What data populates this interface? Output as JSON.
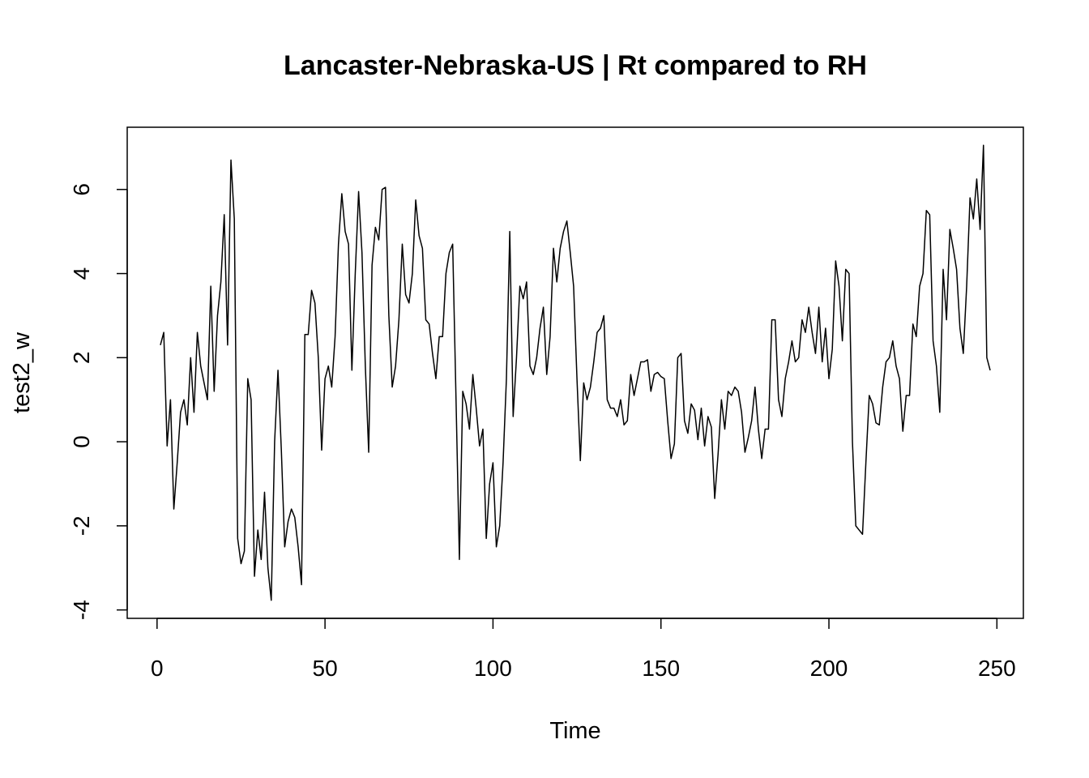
{
  "chart_data": {
    "type": "line",
    "title": "Lancaster-Nebraska-US | Rt compared to RH",
    "xlabel": "Time",
    "ylabel": "test2_w",
    "xlim": [
      -8.88,
      257.88
    ],
    "ylim": [
      -4.2,
      7.48
    ],
    "xticks": [
      0,
      50,
      100,
      150,
      200,
      250
    ],
    "yticks": [
      -4,
      -2,
      0,
      2,
      4,
      6
    ],
    "x": [
      1,
      2,
      3,
      4,
      5,
      6,
      7,
      8,
      9,
      10,
      11,
      12,
      13,
      14,
      15,
      16,
      17,
      18,
      19,
      20,
      21,
      22,
      23,
      24,
      25,
      26,
      27,
      28,
      29,
      30,
      31,
      32,
      33,
      34,
      35,
      36,
      37,
      38,
      39,
      40,
      41,
      42,
      43,
      44,
      45,
      46,
      47,
      48,
      49,
      50,
      51,
      52,
      53,
      54,
      55,
      56,
      57,
      58,
      59,
      60,
      61,
      62,
      63,
      64,
      65,
      66,
      67,
      68,
      69,
      70,
      71,
      72,
      73,
      74,
      75,
      76,
      77,
      78,
      79,
      80,
      81,
      82,
      83,
      84,
      85,
      86,
      87,
      88,
      89,
      90,
      91,
      92,
      93,
      94,
      95,
      96,
      97,
      98,
      99,
      100,
      101,
      102,
      103,
      104,
      105,
      106,
      107,
      108,
      109,
      110,
      111,
      112,
      113,
      114,
      115,
      116,
      117,
      118,
      119,
      120,
      121,
      122,
      123,
      124,
      125,
      126,
      127,
      128,
      129,
      130,
      131,
      132,
      133,
      134,
      135,
      136,
      137,
      138,
      139,
      140,
      141,
      142,
      143,
      144,
      145,
      146,
      147,
      148,
      149,
      150,
      151,
      152,
      153,
      154,
      155,
      156,
      157,
      158,
      159,
      160,
      161,
      162,
      163,
      164,
      165,
      166,
      167,
      168,
      169,
      170,
      171,
      172,
      173,
      174,
      175,
      176,
      177,
      178,
      179,
      180,
      181,
      182,
      183,
      184,
      185,
      186,
      187,
      188,
      189,
      190,
      191,
      192,
      193,
      194,
      195,
      196,
      197,
      198,
      199,
      200,
      201,
      202,
      203,
      204,
      205,
      206,
      207,
      208,
      209,
      210,
      211,
      212,
      213,
      214,
      215,
      216,
      217,
      218,
      219,
      220,
      221,
      222,
      223,
      224,
      225,
      226,
      227,
      228,
      229,
      230,
      231,
      232,
      233,
      234,
      235,
      236,
      237,
      238,
      239,
      240,
      241,
      242,
      243,
      244,
      245,
      246,
      247,
      248
    ],
    "series": [
      {
        "color": "#000000",
        "values": [
          2.3,
          2.6,
          -0.1,
          1.0,
          -1.6,
          -0.5,
          0.7,
          1.0,
          0.4,
          2.0,
          0.7,
          2.6,
          1.8,
          1.4,
          1.0,
          3.7,
          1.2,
          3.0,
          3.8,
          5.4,
          2.3,
          6.7,
          5.3,
          -2.3,
          -2.9,
          -2.6,
          1.5,
          1.0,
          -3.2,
          -2.1,
          -2.8,
          -1.2,
          -3.0,
          -3.77,
          0.0,
          1.7,
          -0.2,
          -2.5,
          -1.9,
          -1.6,
          -1.8,
          -2.5,
          -3.4,
          2.55,
          2.55,
          3.6,
          3.3,
          2.0,
          -0.2,
          1.5,
          1.8,
          1.3,
          2.5,
          4.7,
          5.9,
          5.0,
          4.7,
          1.7,
          4.0,
          5.95,
          4.5,
          1.8,
          -0.25,
          4.2,
          5.1,
          4.8,
          6.0,
          6.05,
          3.0,
          1.3,
          1.8,
          2.9,
          4.7,
          3.5,
          3.3,
          4.0,
          5.75,
          4.9,
          4.6,
          2.9,
          2.8,
          2.1,
          1.5,
          2.5,
          2.5,
          4.0,
          4.5,
          4.7,
          1.0,
          -2.8,
          1.2,
          0.9,
          0.3,
          1.6,
          0.8,
          -0.1,
          0.3,
          -2.3,
          -1.0,
          -0.5,
          -2.5,
          -2.0,
          -0.5,
          1.5,
          5.0,
          0.6,
          2.0,
          3.7,
          3.4,
          3.8,
          1.8,
          1.6,
          2.0,
          2.7,
          3.2,
          1.6,
          2.5,
          4.6,
          3.8,
          4.6,
          5.0,
          5.25,
          4.5,
          3.7,
          1.5,
          -0.45,
          1.4,
          1.0,
          1.3,
          1.9,
          2.6,
          2.7,
          3.0,
          1.0,
          0.8,
          0.8,
          0.6,
          1.0,
          0.4,
          0.5,
          1.6,
          1.1,
          1.5,
          1.9,
          1.9,
          1.95,
          1.2,
          1.6,
          1.65,
          1.55,
          1.5,
          0.5,
          -0.4,
          -0.05,
          2.0,
          2.1,
          0.5,
          0.2,
          0.9,
          0.75,
          0.05,
          0.8,
          -0.1,
          0.6,
          0.35,
          -1.35,
          -0.3,
          1.0,
          0.3,
          1.2,
          1.1,
          1.3,
          1.2,
          0.7,
          -0.25,
          0.1,
          0.5,
          1.3,
          0.3,
          -0.4,
          0.3,
          0.3,
          2.9,
          2.9,
          1.0,
          0.6,
          1.5,
          1.9,
          2.4,
          1.9,
          2.0,
          2.9,
          2.6,
          3.2,
          2.6,
          2.1,
          3.2,
          1.9,
          2.7,
          1.5,
          2.2,
          4.3,
          3.7,
          2.4,
          4.1,
          4.0,
          0.0,
          -2.0,
          -2.1,
          -2.2,
          -0.5,
          1.1,
          0.9,
          0.45,
          0.4,
          1.3,
          1.9,
          2.0,
          2.4,
          1.8,
          1.5,
          0.25,
          1.1,
          1.1,
          2.8,
          2.5,
          3.7,
          4.0,
          5.5,
          5.4,
          2.4,
          1.8,
          0.7,
          4.1,
          2.9,
          5.05,
          4.6,
          4.1,
          2.7,
          2.1,
          3.7,
          5.8,
          5.3,
          6.25,
          5.05,
          7.05,
          2.0,
          1.7
        ]
      }
    ]
  }
}
